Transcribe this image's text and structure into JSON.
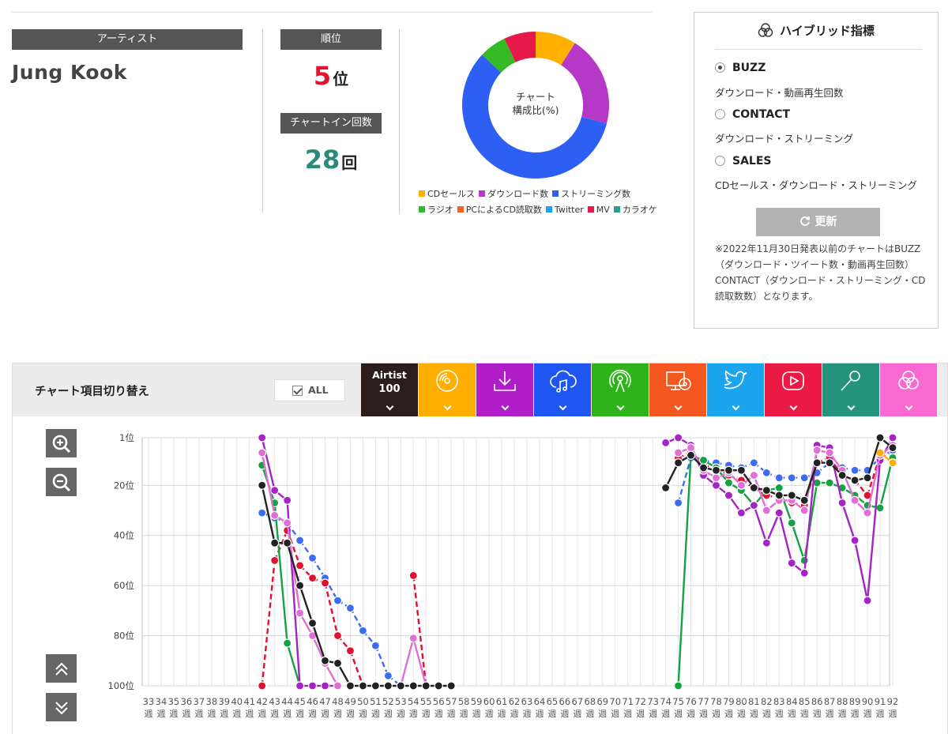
{
  "artist": {
    "header": "アーティスト",
    "name": "Jung Kook"
  },
  "rank": {
    "header": "順位",
    "value": "5",
    "unit": "位"
  },
  "chartin": {
    "header": "チャートイン回数",
    "value": "28",
    "unit": "回"
  },
  "composition": {
    "center_line1": "チャート",
    "center_line2": "構成比(%)",
    "slices": [
      {
        "name": "CDセールス",
        "value": 9,
        "color": "#ffb000"
      },
      {
        "name": "ダウンロード数",
        "value": 20,
        "color": "#b638c6"
      },
      {
        "name": "ストリーミング数",
        "value": 58,
        "color": "#2e5ff5"
      },
      {
        "name": "ラジオ",
        "value": 6,
        "color": "#35b925"
      },
      {
        "name": "MV",
        "value": 7,
        "color": "#e6194b"
      }
    ],
    "legend_row1": [
      {
        "label": "CDセールス",
        "color": "#ffb000"
      },
      {
        "label": "ダウンロード数",
        "color": "#b638c6"
      },
      {
        "label": "ストリーミング数",
        "color": "#2e5ff5"
      }
    ],
    "legend_row2": [
      {
        "label": "ラジオ",
        "color": "#35b925"
      },
      {
        "label": "PCによるCD読取数",
        "color": "#f26522"
      },
      {
        "label": "Twitter",
        "color": "#1da1f2"
      },
      {
        "label": "MV",
        "color": "#e6194b"
      },
      {
        "label": "カラオケ",
        "color": "#2a9d8f"
      }
    ]
  },
  "hybrid": {
    "title": "ハイブリッド指標",
    "options": [
      {
        "label": "BUZZ",
        "desc": "ダウンロード・動画再生回数",
        "selected": true
      },
      {
        "label": "CONTACT",
        "desc": "ダウンロード・ストリーミング",
        "selected": false
      },
      {
        "label": "SALES",
        "desc": "CDセールス・ダウンロード・ストリーミング",
        "selected": false
      }
    ],
    "refresh_label": "更新",
    "note": "※2022年11月30日発表以前のチャートはBUZZ（ダウンロード・ツイート数・動画再生回数）CONTACT（ダウンロード・ストリーミング・CD読取数数）となります。"
  },
  "toolbar": {
    "label": "チャート項目切り替え",
    "all_label": "ALL",
    "tabs": [
      {
        "key": "airtist",
        "line1": "Airtist",
        "line2": "100",
        "color": "#2a1d1b",
        "icon": "none"
      },
      {
        "key": "cd",
        "color": "#ffae00",
        "icon": "cd-icon"
      },
      {
        "key": "download",
        "color": "#b01ec8",
        "icon": "download-icon"
      },
      {
        "key": "streaming",
        "color": "#1f55f0",
        "icon": "cloud-music-icon"
      },
      {
        "key": "radio",
        "color": "#2fb31b",
        "icon": "radio-icon"
      },
      {
        "key": "pc",
        "color": "#f5571e",
        "icon": "pc-cd-icon"
      },
      {
        "key": "twitter",
        "color": "#1ba5ee",
        "icon": "twitter-icon"
      },
      {
        "key": "mv",
        "color": "#ea1a45",
        "icon": "youtube-icon"
      },
      {
        "key": "karaoke",
        "color": "#23937c",
        "icon": "microphone-icon"
      },
      {
        "key": "hybrid",
        "color": "#f86ad2",
        "icon": "hybrid-icon"
      }
    ]
  },
  "chart_data": {
    "type": "line",
    "y_reversed": true,
    "ylim": [
      1,
      100
    ],
    "yticks": [
      {
        "value": 1,
        "label": "1位"
      },
      {
        "value": 20,
        "label": "20位"
      },
      {
        "value": 40,
        "label": "40位"
      },
      {
        "value": 60,
        "label": "60位"
      },
      {
        "value": 80,
        "label": "80位"
      },
      {
        "value": 100,
        "label": "100位"
      }
    ],
    "xlim": [
      33,
      92
    ],
    "x_unit": "週",
    "series": [
      {
        "key": "streaming",
        "color": "#3b6cf2",
        "dashed": true,
        "points": [
          [
            42,
            31
          ],
          [
            43,
            33
          ],
          [
            44,
            35
          ],
          [
            45,
            42
          ],
          [
            46,
            49
          ],
          [
            47,
            57
          ],
          [
            48,
            66
          ],
          [
            49,
            69
          ],
          [
            50,
            78
          ],
          [
            51,
            84
          ],
          [
            52,
            96
          ],
          [
            53,
            100
          ],
          [
            75,
            27
          ],
          [
            76,
            9
          ],
          [
            77,
            10
          ],
          [
            78,
            11
          ],
          [
            79,
            12
          ],
          [
            80,
            13
          ],
          [
            81,
            11
          ],
          [
            82,
            15
          ],
          [
            83,
            17
          ],
          [
            84,
            17
          ],
          [
            85,
            17
          ],
          [
            86,
            15
          ],
          [
            87,
            11
          ],
          [
            88,
            13
          ],
          [
            89,
            14
          ],
          [
            90,
            14
          ],
          [
            91,
            9
          ],
          [
            92,
            6
          ]
        ]
      },
      {
        "key": "mv",
        "color": "#e0102f",
        "dashed": true,
        "points": [
          [
            42,
            100
          ],
          [
            43,
            50
          ],
          [
            44,
            38
          ],
          [
            45,
            52
          ],
          [
            46,
            57
          ],
          [
            47,
            59
          ],
          [
            48,
            80
          ],
          [
            49,
            86
          ],
          [
            50,
            100
          ],
          [
            54,
            56
          ],
          [
            55,
            100
          ],
          [
            74,
            null
          ],
          [
            75,
            9
          ],
          [
            76,
            7
          ],
          [
            77,
            12
          ],
          [
            78,
            13
          ],
          [
            79,
            16
          ],
          [
            80,
            18
          ],
          [
            81,
            21
          ],
          [
            82,
            24
          ],
          [
            83,
            25
          ],
          [
            84,
            27
          ],
          [
            85,
            28
          ],
          [
            86,
            11
          ],
          [
            87,
            9
          ],
          [
            88,
            16
          ],
          [
            89,
            18
          ],
          [
            90,
            24
          ],
          [
            91,
            8
          ],
          [
            92,
            9
          ]
        ]
      },
      {
        "key": "radio",
        "color": "#14a243",
        "dashed": false,
        "points": [
          [
            42,
            12
          ],
          [
            43,
            27
          ],
          [
            44,
            83
          ],
          [
            45,
            100
          ],
          [
            75,
            100
          ],
          [
            76,
            8
          ],
          [
            77,
            10
          ],
          [
            78,
            13
          ],
          [
            79,
            19
          ],
          [
            80,
            22
          ],
          [
            81,
            28
          ],
          [
            82,
            22
          ],
          [
            83,
            21
          ],
          [
            84,
            35
          ],
          [
            85,
            50
          ],
          [
            86,
            19
          ],
          [
            87,
            19
          ],
          [
            88,
            21
          ],
          [
            89,
            24
          ],
          [
            90,
            28
          ],
          [
            91,
            29
          ],
          [
            92,
            9
          ]
        ]
      },
      {
        "key": "download",
        "color": "#a424c5",
        "dashed": false,
        "points": [
          [
            42,
            1
          ],
          [
            43,
            22
          ],
          [
            44,
            26
          ],
          [
            45,
            100
          ],
          [
            46,
            100
          ],
          [
            47,
            100
          ],
          [
            48,
            100
          ],
          [
            74,
            3
          ],
          [
            75,
            1
          ],
          [
            76,
            4
          ],
          [
            77,
            16
          ],
          [
            78,
            20
          ],
          [
            79,
            24
          ],
          [
            80,
            31
          ],
          [
            81,
            28
          ],
          [
            82,
            43
          ],
          [
            83,
            31
          ],
          [
            84,
            51
          ],
          [
            85,
            55
          ],
          [
            86,
            4
          ],
          [
            87,
            5
          ],
          [
            88,
            27
          ],
          [
            89,
            42
          ],
          [
            90,
            66
          ],
          [
            91,
            10
          ],
          [
            92,
            1
          ]
        ]
      },
      {
        "key": "hybrid",
        "color": "#e06fd6",
        "dashed": false,
        "points": [
          [
            42,
            7
          ],
          [
            43,
            32
          ],
          [
            44,
            35
          ],
          [
            45,
            71
          ],
          [
            46,
            80
          ],
          [
            47,
            91
          ],
          [
            48,
            100
          ],
          [
            53,
            100
          ],
          [
            54,
            81
          ],
          [
            55,
            100
          ],
          [
            75,
            7
          ],
          [
            76,
            5
          ],
          [
            77,
            14
          ],
          [
            78,
            17
          ],
          [
            79,
            15
          ],
          [
            80,
            20
          ],
          [
            81,
            16
          ],
          [
            82,
            30
          ],
          [
            83,
            26
          ],
          [
            84,
            26
          ],
          [
            85,
            30
          ],
          [
            86,
            6
          ],
          [
            87,
            7
          ],
          [
            88,
            14
          ],
          [
            89,
            26
          ],
          [
            90,
            31
          ],
          [
            91,
            8
          ],
          [
            92,
            4
          ]
        ]
      },
      {
        "key": "cd",
        "color": "#ffae00",
        "dashed": false,
        "points": [
          [
            91,
            7
          ],
          [
            92,
            11
          ]
        ]
      },
      {
        "key": "airtist",
        "color": "#222222",
        "dashed": false,
        "points": [
          [
            42,
            20
          ],
          [
            43,
            43
          ],
          [
            44,
            43
          ],
          [
            45,
            60
          ],
          [
            46,
            75
          ],
          [
            47,
            90
          ],
          [
            48,
            91
          ],
          [
            49,
            100
          ],
          [
            50,
            100
          ],
          [
            51,
            100
          ],
          [
            52,
            100
          ],
          [
            53,
            100
          ],
          [
            54,
            100
          ],
          [
            55,
            100
          ],
          [
            56,
            100
          ],
          [
            57,
            100
          ],
          [
            74,
            21
          ],
          [
            75,
            11
          ],
          [
            76,
            8
          ],
          [
            77,
            13
          ],
          [
            78,
            14
          ],
          [
            79,
            14
          ],
          [
            80,
            14
          ],
          [
            81,
            21
          ],
          [
            82,
            22
          ],
          [
            83,
            24
          ],
          [
            84,
            24
          ],
          [
            85,
            26
          ],
          [
            86,
            11
          ],
          [
            87,
            11
          ],
          [
            88,
            16
          ],
          [
            89,
            18
          ],
          [
            90,
            17
          ],
          [
            91,
            1
          ],
          [
            92,
            5
          ]
        ]
      }
    ]
  }
}
